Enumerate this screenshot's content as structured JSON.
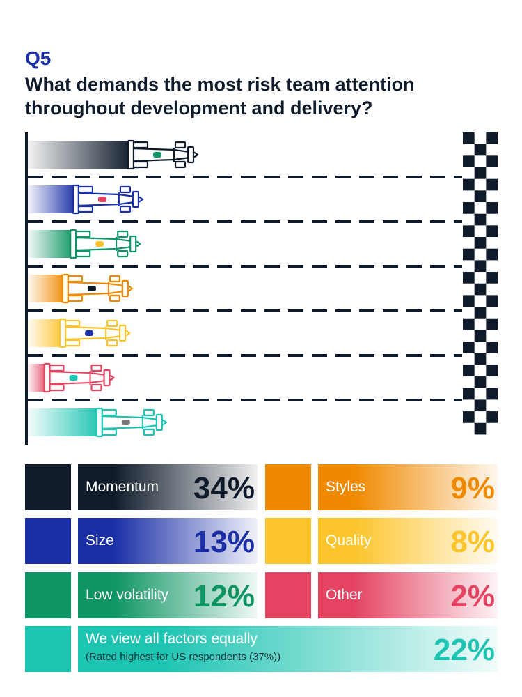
{
  "question": {
    "number": "Q5",
    "text": "What demands the most risk team attention throughout development and delivery?"
  },
  "colors": {
    "momentum": "#0f1b2a",
    "size": "#1a2fa6",
    "low_volatility": "#0f9463",
    "styles": "#ef8a00",
    "quality": "#fcc42b",
    "other": "#e44462",
    "all_equal": "#1ec4b2"
  },
  "chart_data": {
    "type": "bar",
    "orientation": "horizontal",
    "unit": "%",
    "categories": [
      "Momentum",
      "Size",
      "Low volatility",
      "Styles",
      "Quality",
      "Other",
      "We view all factors equally"
    ],
    "values": [
      34,
      13,
      12,
      9,
      8,
      2,
      22
    ],
    "note": "(Rated highest for US respondents (37%))"
  },
  "legend": {
    "left": [
      {
        "label": "Momentum",
        "value": "34%",
        "color_key": "momentum"
      },
      {
        "label": "Size",
        "value": "13%",
        "color_key": "size"
      },
      {
        "label": "Low volatility",
        "value": "12%",
        "color_key": "low_volatility"
      }
    ],
    "right": [
      {
        "label": "Styles",
        "value": "9%",
        "color_key": "styles"
      },
      {
        "label": "Quality",
        "value": "8%",
        "color_key": "quality"
      },
      {
        "label": "Other",
        "value": "2%",
        "color_key": "other"
      }
    ],
    "full": {
      "label": "We view all factors equally",
      "note": "(Rated highest for US respondents (37%))",
      "value": "22%",
      "color_key": "all_equal"
    }
  }
}
